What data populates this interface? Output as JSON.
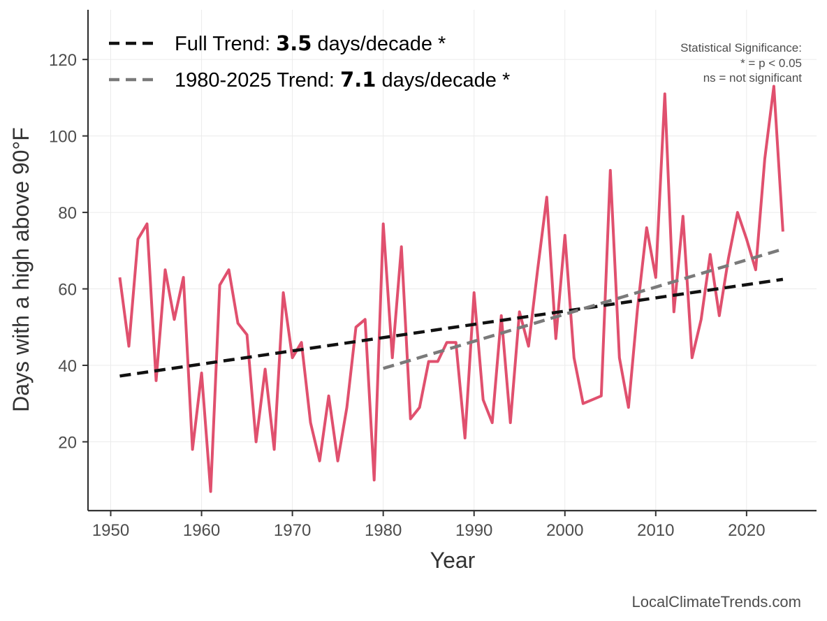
{
  "chart_data": {
    "type": "line",
    "xlabel": "Year",
    "ylabel": "Days with a high above 90°F",
    "xlim": [
      1947.5,
      2027.7
    ],
    "ylim": [
      2,
      133
    ],
    "xticks": [
      1950,
      1960,
      1970,
      1980,
      1990,
      2000,
      2010,
      2020
    ],
    "yticks": [
      20,
      40,
      60,
      80,
      100,
      120
    ],
    "grid": true,
    "legend_position": "top-left",
    "series": [
      {
        "color": "#e0506e",
        "x": [
          1951,
          1952,
          1953,
          1954,
          1955,
          1956,
          1957,
          1958,
          1959,
          1960,
          1961,
          1962,
          1963,
          1964,
          1965,
          1966,
          1967,
          1968,
          1969,
          1970,
          1971,
          1972,
          1973,
          1974,
          1975,
          1976,
          1977,
          1978,
          1979,
          1980,
          1981,
          1982,
          1983,
          1984,
          1985,
          1986,
          1987,
          1988,
          1989,
          1990,
          1991,
          1992,
          1993,
          1994,
          1995,
          1996,
          1997,
          1998,
          1999,
          2000,
          2001,
          2002,
          2003,
          2004,
          2005,
          2006,
          2007,
          2008,
          2009,
          2010,
          2011,
          2012,
          2013,
          2014,
          2015,
          2016,
          2017,
          2018,
          2019,
          2020,
          2021,
          2022,
          2023,
          2024
        ],
        "y": [
          63,
          45,
          73,
          77,
          36,
          65,
          52,
          63,
          18,
          38,
          7,
          61,
          65,
          51,
          48,
          20,
          39,
          18,
          59,
          42,
          46,
          25,
          15,
          32,
          15,
          29,
          50,
          52,
          10,
          77,
          42,
          71,
          26,
          29,
          41,
          41,
          46,
          46,
          21,
          59,
          31,
          25,
          53,
          25,
          54,
          45,
          65,
          84,
          47,
          74,
          42,
          30,
          31,
          32,
          91,
          42,
          29,
          55,
          76,
          63,
          111,
          54,
          79,
          42,
          52,
          69,
          53,
          68,
          80,
          73,
          65,
          94,
          113,
          75
        ]
      },
      {
        "name": "Full Trend",
        "color": "#111111",
        "dashed": true,
        "x": [
          1951,
          2024
        ],
        "y": [
          37.2,
          62.5
        ]
      },
      {
        "name": "1980-2025 Trend",
        "color": "#7a7a7a",
        "dashed": true,
        "x": [
          1980,
          2024
        ],
        "y": [
          39.2,
          70.4
        ]
      }
    ]
  },
  "legend": [
    {
      "prefix": "Full Trend: ",
      "value": "3.5",
      "suffix": " days/decade *",
      "color": "#111111"
    },
    {
      "prefix": "1980-2025 Trend: ",
      "value": "7.1",
      "suffix": " days/decade *",
      "color": "#7a7a7a"
    }
  ],
  "significance_note": [
    "Statistical Significance:",
    "* = p < 0.05",
    "ns = not significant"
  ],
  "credit": "LocalClimateTrends.com"
}
